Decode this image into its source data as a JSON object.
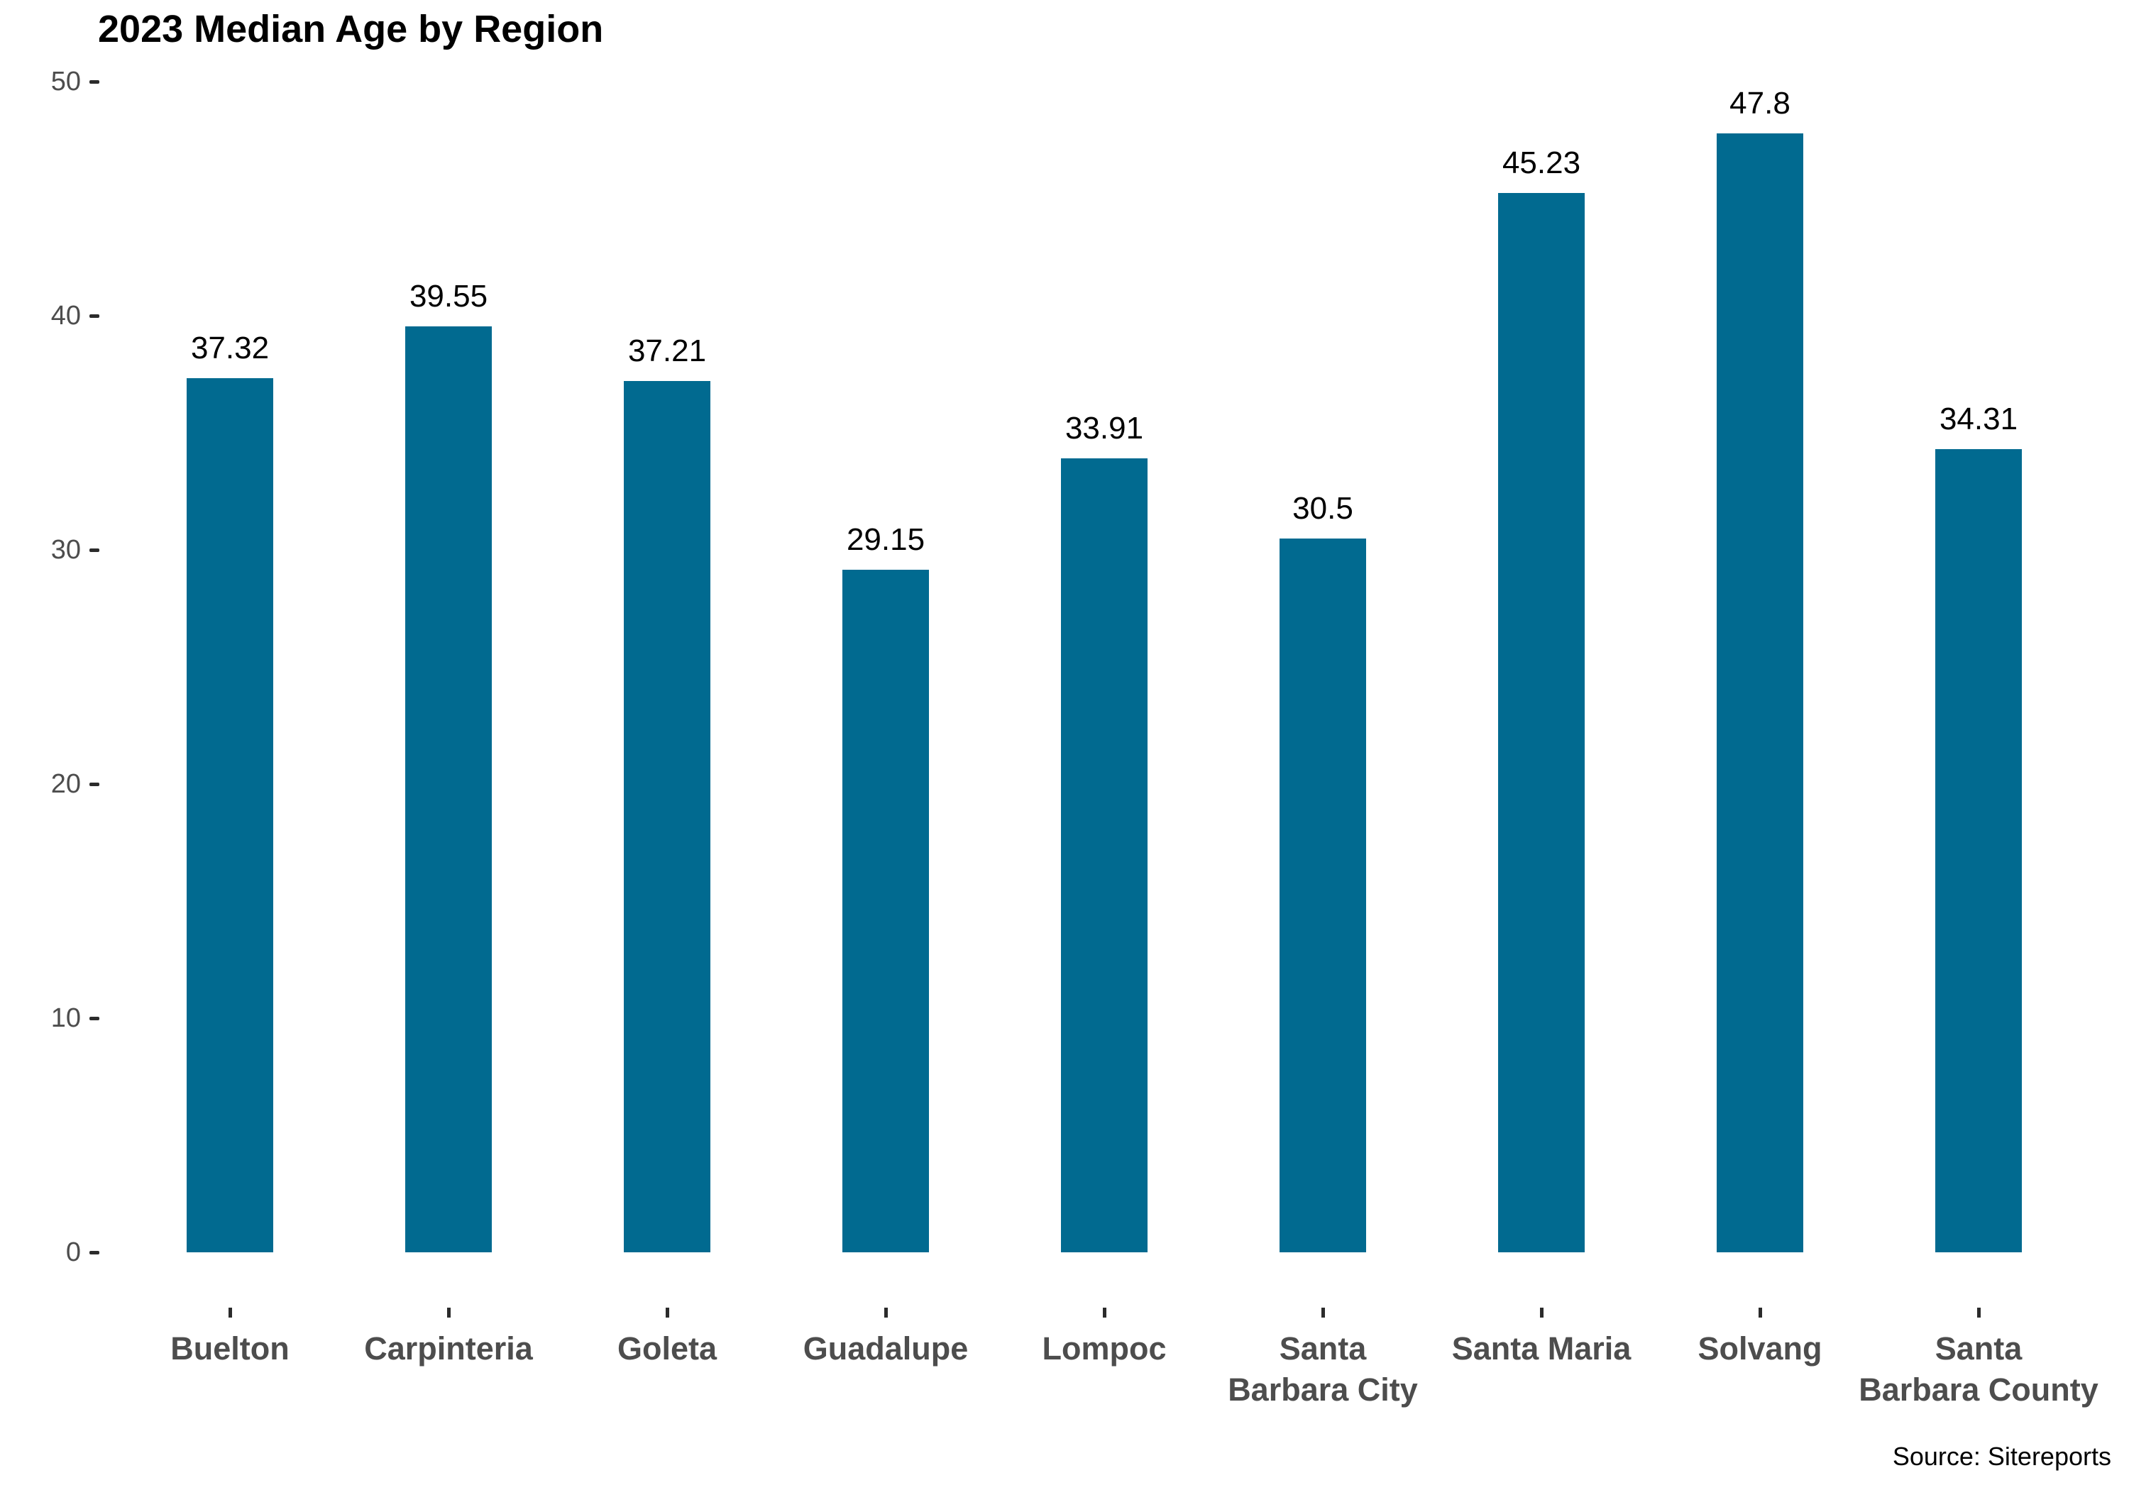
{
  "chart_data": {
    "type": "bar",
    "title": "2023 Median Age by Region",
    "categories": [
      "Buelton",
      "Carpinteria",
      "Goleta",
      "Guadalupe",
      "Lompoc",
      "Santa\nBarbara City",
      "Santa Maria",
      "Solvang",
      "Santa\nBarbara County"
    ],
    "values": [
      37.32,
      39.55,
      37.21,
      29.15,
      33.91,
      30.5,
      45.23,
      47.8,
      34.31
    ],
    "value_labels": [
      "37.32",
      "39.55",
      "37.21",
      "29.15",
      "33.91",
      "30.5",
      "45.23",
      "47.8",
      "34.31"
    ],
    "xlabel": "",
    "ylabel": "",
    "ylim": [
      0,
      50
    ],
    "yticks": [
      0,
      10,
      20,
      30,
      40,
      50
    ],
    "grid": false,
    "legend": "none",
    "bar_color": "#016a90",
    "axis_text_color": "#4d4d4d",
    "tick_mark_color": "#2b2b2b",
    "value_label_color": "#000000",
    "title_color": "#000000",
    "source_note": "Source: Sitereports",
    "source_color": "#000000"
  }
}
